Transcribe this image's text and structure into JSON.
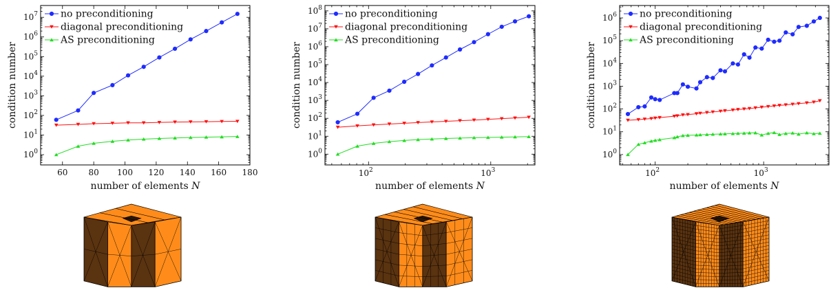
{
  "series_colors": {
    "no_preconditioning": "#1f2cff",
    "diagonal_preconditioning": "#ff1010",
    "AS_preconditioning": "#22dd22"
  },
  "mesh_colors": {
    "light": "#ff8c1a",
    "dark": "#5a3310",
    "mid": "#c86a12"
  },
  "chart_data": [
    {
      "type": "line",
      "xscale": "linear",
      "yscale": "log",
      "xlim": [
        46,
        180
      ],
      "ylim": [
        0.3,
        40000000
      ],
      "xticks": [
        60,
        80,
        100,
        120,
        140,
        160,
        180
      ],
      "xtick_labels": [
        "60",
        "80",
        "100",
        "120",
        "140",
        "160",
        "180"
      ],
      "yticks": [
        1,
        10,
        100,
        1000,
        10000,
        100000,
        1000000,
        10000000
      ],
      "ytick_labels": [
        [
          "10",
          "0"
        ],
        [
          "10",
          "1"
        ],
        [
          "10",
          "2"
        ],
        [
          "10",
          "3"
        ],
        [
          "10",
          "4"
        ],
        [
          "10",
          "5"
        ],
        [
          "10",
          "6"
        ],
        [
          "10",
          "7"
        ]
      ],
      "xlabel": "number of elements N",
      "ylabel": "condition number",
      "legend": "top-left",
      "series": [
        {
          "name": "no preconditioning",
          "marker": "circle",
          "x": [
            56,
            70,
            80,
            92,
            102,
            112,
            122,
            132,
            142,
            152,
            162,
            172
          ],
          "y": [
            60,
            180,
            1400,
            3500,
            11000,
            30000,
            90000,
            250000,
            750000,
            2000000,
            5500000,
            15000000
          ]
        },
        {
          "name": "diagonal preconditioning",
          "marker": "triangle-down",
          "x": [
            56,
            70,
            80,
            92,
            102,
            112,
            122,
            132,
            142,
            152,
            162,
            172
          ],
          "y": [
            32,
            35,
            38,
            40,
            42,
            42,
            44,
            46,
            47,
            48,
            49,
            50
          ]
        },
        {
          "name": "AS preconditioning",
          "marker": "triangle-up",
          "x": [
            56,
            70,
            80,
            92,
            102,
            112,
            122,
            132,
            142,
            152,
            162,
            172
          ],
          "y": [
            1,
            2.7,
            3.8,
            4.8,
            5.6,
            6.2,
            6.7,
            7.1,
            7.5,
            7.8,
            8.1,
            8.4
          ]
        }
      ]
    },
    {
      "type": "line",
      "xscale": "log",
      "yscale": "log",
      "xlim": [
        44,
        2300
      ],
      "ylim": [
        0.25,
        200000000
      ],
      "xticks": [
        100,
        1000
      ],
      "xtick_labels": [
        [
          "10",
          "2"
        ],
        [
          "10",
          "3"
        ]
      ],
      "yticks": [
        1,
        10,
        100,
        1000,
        10000,
        100000,
        1000000,
        10000000,
        100000000
      ],
      "ytick_labels": [
        [
          "10",
          "0"
        ],
        [
          "10",
          "1"
        ],
        [
          "10",
          "2"
        ],
        [
          "10",
          "3"
        ],
        [
          "10",
          "4"
        ],
        [
          "10",
          "5"
        ],
        [
          "10",
          "6"
        ],
        [
          "10",
          "7"
        ],
        [
          "10",
          "8"
        ]
      ],
      "xlabel": "number of elements N",
      "ylabel": "condition number",
      "legend": "top-left",
      "series": [
        {
          "name": "no preconditioning",
          "marker": "circle",
          "x": [
            56,
            81,
            110,
            148,
            196,
            254,
            330,
            430,
            560,
            730,
            950,
            1230,
            1580,
            2050
          ],
          "y": [
            60,
            180,
            1400,
            3500,
            11000,
            30000,
            90000,
            250000,
            700000,
            1800000,
            5000000,
            13000000,
            26000000,
            50000000
          ]
        },
        {
          "name": "diagonal preconditioning",
          "marker": "triangle-down",
          "x": [
            56,
            81,
            110,
            148,
            196,
            254,
            330,
            430,
            560,
            730,
            950,
            1230,
            1580,
            2050
          ],
          "y": [
            32,
            38,
            43,
            48,
            53,
            58,
            63,
            68,
            74,
            80,
            88,
            96,
            105,
            115
          ]
        },
        {
          "name": "AS preconditioning",
          "marker": "triangle-up",
          "x": [
            56,
            81,
            110,
            148,
            196,
            254,
            330,
            430,
            560,
            730,
            950,
            1230,
            1580,
            2050
          ],
          "y": [
            1,
            2.8,
            4.0,
            5.0,
            5.8,
            6.5,
            7.0,
            7.5,
            7.9,
            8.3,
            8.6,
            8.9,
            9.2,
            9.5
          ]
        }
      ]
    },
    {
      "type": "line",
      "xscale": "log",
      "yscale": "log",
      "xlim": [
        47,
        4000
      ],
      "ylim": [
        0.35,
        3500000
      ],
      "xticks": [
        100,
        1000
      ],
      "xtick_labels": [
        [
          "10",
          "2"
        ],
        [
          "10",
          "3"
        ]
      ],
      "yticks": [
        1,
        10,
        100,
        1000,
        10000,
        100000,
        1000000
      ],
      "ytick_labels": [
        [
          "10",
          "0"
        ],
        [
          "10",
          "1"
        ],
        [
          "10",
          "2"
        ],
        [
          "10",
          "3"
        ],
        [
          "10",
          "4"
        ],
        [
          "10",
          "5"
        ],
        [
          "10",
          "6"
        ]
      ],
      "xlabel": "number of elements N",
      "ylabel": "condition number",
      "legend": "top-left",
      "series": [
        {
          "name": "no preconditioning",
          "marker": "circle",
          "x": [
            56,
            70,
            80,
            92,
            100,
            110,
            150,
            160,
            180,
            200,
            240,
            260,
            300,
            340,
            400,
            440,
            520,
            580,
            660,
            740,
            840,
            960,
            1100,
            1250,
            1400,
            1600,
            1850,
            2100,
            2500,
            2900,
            3300
          ],
          "y": [
            60,
            120,
            130,
            320,
            270,
            250,
            500,
            500,
            1200,
            950,
            800,
            1500,
            2500,
            2300,
            5000,
            4500,
            10000,
            9000,
            25000,
            18000,
            50000,
            45000,
            110000,
            90000,
            100000,
            230000,
            190000,
            400000,
            450000,
            700000,
            1000000
          ]
        },
        {
          "name": "diagonal preconditioning",
          "marker": "triangle-down",
          "x": [
            56,
            70,
            80,
            92,
            100,
            110,
            150,
            160,
            180,
            200,
            240,
            260,
            300,
            340,
            400,
            440,
            520,
            580,
            660,
            740,
            840,
            960,
            1100,
            1250,
            1400,
            1600,
            1850,
            2100,
            2500,
            2900,
            3300
          ],
          "y": [
            32,
            34,
            36,
            38,
            40,
            42,
            48,
            50,
            55,
            57,
            62,
            65,
            70,
            74,
            80,
            84,
            90,
            95,
            100,
            105,
            112,
            120,
            128,
            136,
            144,
            152,
            162,
            172,
            185,
            200,
            230
          ]
        },
        {
          "name": "AS preconditioning",
          "marker": "triangle-up",
          "x": [
            56,
            70,
            80,
            92,
            100,
            110,
            150,
            160,
            180,
            200,
            240,
            260,
            300,
            340,
            400,
            440,
            520,
            580,
            660,
            740,
            840,
            960,
            1100,
            1250,
            1400,
            1600,
            1850,
            2100,
            2500,
            2900,
            3300
          ],
          "y": [
            1,
            2.8,
            3.3,
            3.9,
            4.2,
            4.5,
            5.5,
            6.0,
            6.8,
            7.0,
            7.2,
            7.4,
            7.6,
            7.8,
            8.0,
            8.1,
            8.3,
            8.5,
            8.7,
            8.9,
            9.0,
            7.2,
            8.5,
            9.2,
            7.6,
            8.4,
            8.8,
            7.9,
            9.0,
            8.2,
            8.6
          ]
        }
      ]
    }
  ]
}
